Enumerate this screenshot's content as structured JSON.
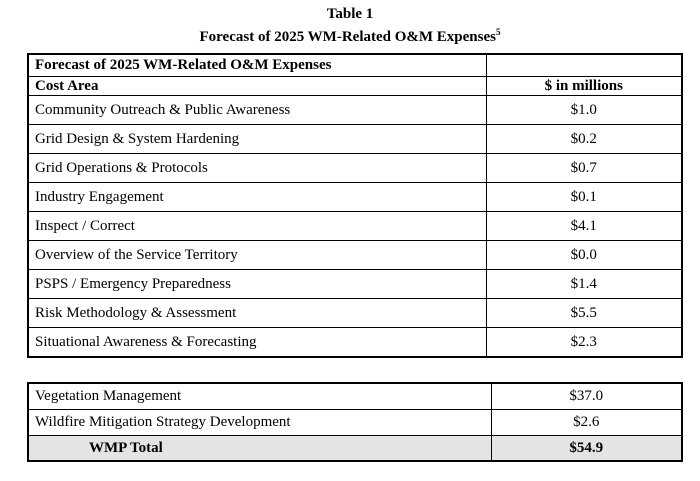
{
  "caption": {
    "table_number": "Table 1",
    "title": "Forecast of 2025 WM-Related O&M Expenses",
    "footnote_marker": "5"
  },
  "table_main": {
    "title_cell": "Forecast of 2025 WM-Related O&M Expenses",
    "title_value_cell": "",
    "columns": [
      "Cost Area",
      "$ in millions"
    ],
    "rows": [
      {
        "label": "Community Outreach & Public Awareness",
        "value": "$1.0"
      },
      {
        "label": "Grid Design & System Hardening",
        "value": "$0.2"
      },
      {
        "label": "Grid Operations & Protocols",
        "value": "$0.7"
      },
      {
        "label": "Industry Engagement",
        "value": "$0.1"
      },
      {
        "label": "Inspect / Correct",
        "value": "$4.1"
      },
      {
        "label": "Overview of the Service Territory",
        "value": "$0.0"
      },
      {
        "label": "PSPS / Emergency Preparedness",
        "value": "$1.4"
      },
      {
        "label": "Risk Methodology & Assessment",
        "value": "$5.5"
      },
      {
        "label": "Situational Awareness & Forecasting",
        "value": "$2.3"
      }
    ]
  },
  "table_totals": {
    "rows": [
      {
        "label": "Vegetation Management",
        "value": "$37.0"
      },
      {
        "label": "Wildfire Mitigation Strategy Development",
        "value": "$2.6"
      }
    ],
    "total": {
      "label": "WMP Total",
      "value": "$54.9"
    },
    "total_background": "#e4e4e4"
  }
}
